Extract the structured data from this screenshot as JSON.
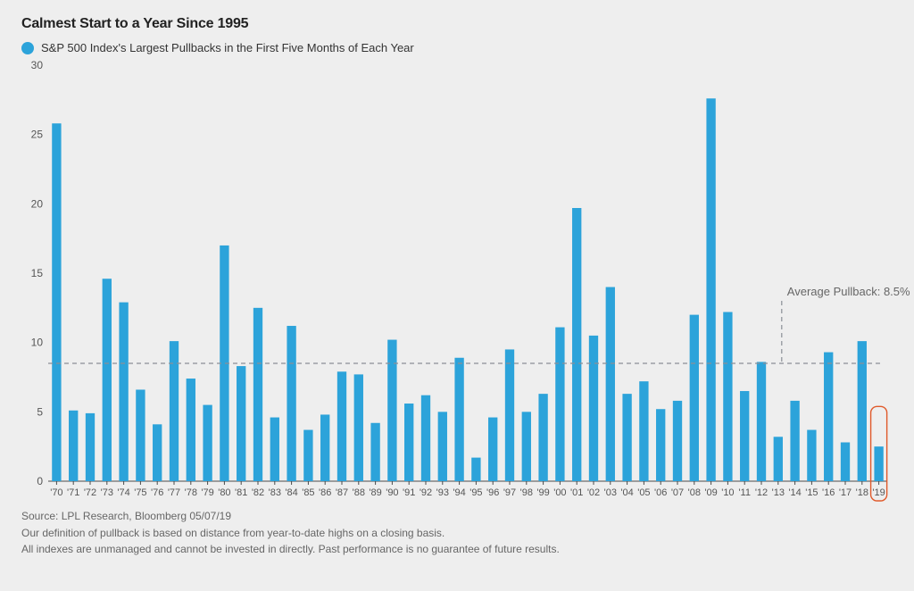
{
  "title": "Calmest Start to a Year Since 1995",
  "legend": {
    "marker_color": "#2ca3da",
    "text": "S&P 500 Index's Largest Pullbacks in the First Five Months of Each Year"
  },
  "chart": {
    "type": "bar",
    "background_color": "#eeeeee",
    "bar_color": "#2ca3da",
    "grid_color": "#9aa0a6",
    "axis_color": "#4a4a4a",
    "highlight_box_color": "#e05a2b",
    "avg_line_color": "#8a8f96",
    "ylim": [
      0,
      30
    ],
    "ytick_step": 5,
    "categories": [
      "'70",
      "'71",
      "'72",
      "'73",
      "'74",
      "'75",
      "'76",
      "'77",
      "'78",
      "'79",
      "'80",
      "'81",
      "'82",
      "'83",
      "'84",
      "'85",
      "'86",
      "'87",
      "'88",
      "'89",
      "'90",
      "'91",
      "'92",
      "'93",
      "'94",
      "'95",
      "'96",
      "'97",
      "'98",
      "'99",
      "'00",
      "'01",
      "'02",
      "'03",
      "'04",
      "'05",
      "'06",
      "'07",
      "'08",
      "'09",
      "'10",
      "'11",
      "'12",
      "'13",
      "'14",
      "'15",
      "'16",
      "'17",
      "'18",
      "'19"
    ],
    "values": [
      25.8,
      5.1,
      4.9,
      14.6,
      12.9,
      6.6,
      4.1,
      10.1,
      7.4,
      5.5,
      17.0,
      8.3,
      12.5,
      4.6,
      11.2,
      3.7,
      4.8,
      7.9,
      7.7,
      4.2,
      10.2,
      5.6,
      6.2,
      5.0,
      8.9,
      1.7,
      4.6,
      9.5,
      5.0,
      6.3,
      11.1,
      19.7,
      10.5,
      14.0,
      6.3,
      7.2,
      5.2,
      5.8,
      12.0,
      27.6,
      12.2,
      6.5,
      8.6,
      3.2,
      5.8,
      3.7,
      9.3,
      2.8,
      10.1,
      2.5
    ],
    "average_value": 8.5,
    "average_label": "Average Pullback: 8.5%",
    "highlight_index": 49,
    "tick_fontsize": 12,
    "label_color": "#555555"
  },
  "footer": {
    "line1": "Source: LPL Research, Bloomberg 05/07/19",
    "line2": "Our definition of pullback is based on distance from year-to-date highs on a closing basis.",
    "line3": "All indexes are unmanaged and cannot be invested in directly. Past performance is no guarantee of future results."
  }
}
